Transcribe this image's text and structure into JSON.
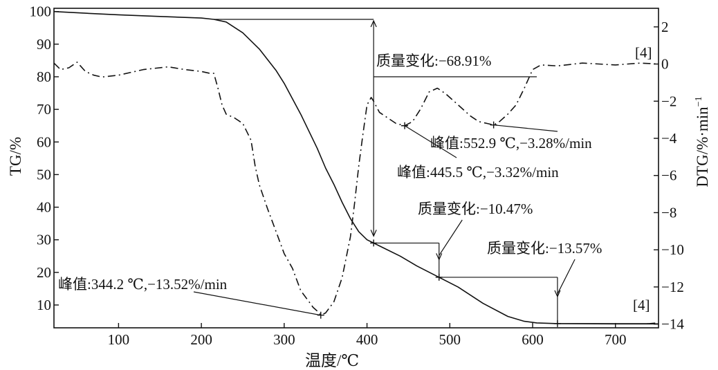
{
  "chart_data": {
    "type": "line",
    "xlabel": "温度/℃",
    "ylabel_left": "TG/%",
    "ylabel_right": "DTG/%·min",
    "ylabel_right_sup": "−1",
    "xlim": [
      22,
      752
    ],
    "ylim_left": [
      3,
      101
    ],
    "ylim_right": [
      -14.2,
      3
    ],
    "x_ticks": [
      100,
      200,
      300,
      400,
      500,
      600,
      700
    ],
    "y_left_ticks": [
      100,
      90,
      80,
      70,
      60,
      50,
      40,
      30,
      20,
      10
    ],
    "y_right_ticks": [
      {
        "value": 2,
        "label": "2"
      },
      {
        "value": 0,
        "label": "0"
      },
      {
        "value": -2,
        "label": "−2"
      },
      {
        "value": -4,
        "label": "−4"
      },
      {
        "value": -6,
        "label": "−6"
      },
      {
        "value": -8,
        "label": "−8"
      },
      {
        "value": -10,
        "label": "−10"
      },
      {
        "value": -12,
        "label": "−12"
      },
      {
        "value": -14,
        "label": "−14"
      }
    ],
    "series": [
      {
        "name": "TG",
        "style": "solid",
        "axis": "left",
        "x": [
          22,
          60,
          100,
          150,
          200,
          215,
          230,
          250,
          270,
          290,
          300,
          320,
          340,
          350,
          360,
          370,
          380,
          390,
          400,
          408,
          420,
          440,
          460,
          487,
          510,
          540,
          570,
          590,
          605,
          630,
          700,
          752
        ],
        "y": [
          100,
          99.5,
          99,
          98.5,
          98,
          97.6,
          96.8,
          93.5,
          88.5,
          82,
          78,
          68.5,
          58,
          52,
          47,
          41.5,
          36.5,
          32.5,
          30,
          29,
          27.5,
          25,
          22,
          18.5,
          15.5,
          10.5,
          6.5,
          5,
          4.5,
          4.3,
          4.2,
          4.2
        ]
      },
      {
        "name": "DTG",
        "style": "dashed",
        "axis": "right",
        "x": [
          22,
          30,
          40,
          50,
          60,
          70,
          80,
          100,
          130,
          160,
          180,
          200,
          210,
          215,
          220,
          225,
          230,
          240,
          250,
          260,
          265,
          270,
          280,
          290,
          300,
          310,
          320,
          330,
          335,
          340,
          344.2,
          350,
          360,
          370,
          380,
          385,
          390,
          395,
          400,
          405,
          408,
          415,
          425,
          435,
          445.5,
          455,
          465,
          475,
          485,
          495,
          505,
          515,
          525,
          535,
          545,
          552.9,
          560,
          570,
          580,
          590,
          600,
          610,
          630,
          660,
          700,
          730,
          752
        ],
        "y": [
          0.05,
          -0.3,
          -0.2,
          0.1,
          -0.4,
          -0.6,
          -0.7,
          -0.6,
          -0.3,
          -0.15,
          -0.3,
          -0.4,
          -0.5,
          -0.5,
          -1.3,
          -2.2,
          -2.7,
          -2.9,
          -3.2,
          -4.1,
          -5.5,
          -6.5,
          -7.8,
          -9.0,
          -10.2,
          -11.0,
          -12.2,
          -12.8,
          -13.1,
          -13.3,
          -13.52,
          -13.4,
          -12.8,
          -11.5,
          -9.3,
          -7.5,
          -5.5,
          -3.8,
          -2.2,
          -1.8,
          -2.0,
          -2.6,
          -2.9,
          -3.2,
          -3.32,
          -3.1,
          -2.4,
          -1.5,
          -1.3,
          -1.6,
          -2.0,
          -2.4,
          -2.8,
          -3.1,
          -3.2,
          -3.28,
          -3.1,
          -2.7,
          -2.2,
          -1.3,
          -0.3,
          -0.05,
          -0.1,
          0.05,
          -0.05,
          0.05,
          0.0
        ]
      }
    ],
    "peaks": [
      {
        "x": 344.2,
        "y_right": -13.52,
        "label": "峰值:344.2 ℃,−13.52%/min"
      },
      {
        "x": 445.5,
        "y_right": -3.32,
        "label": "峰值:445.5 ℃,−3.32%/min"
      },
      {
        "x": 552.9,
        "y_right": -3.28,
        "label": "峰值:552.9 ℃,−3.28%/min"
      }
    ],
    "mass_changes": [
      {
        "label": "质量变化:−68.91%",
        "x": 408,
        "y_top": 97.6,
        "y_bottom": 29
      },
      {
        "label": "质量变化:−10.47%",
        "x": 487,
        "y_top": 29,
        "y_bottom": 18.5
      },
      {
        "label": "质量变化:−13.57%",
        "x": 630,
        "y_top": 18.5,
        "y_bottom": 4.3
      }
    ],
    "refs": [
      "[4]",
      "[4]"
    ],
    "grid": false
  }
}
